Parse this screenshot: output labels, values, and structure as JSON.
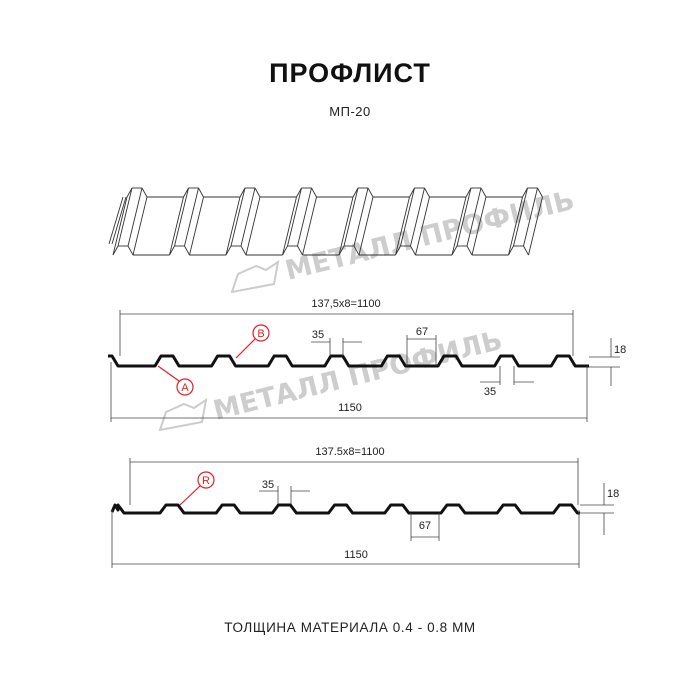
{
  "header": {
    "title": "ПРОФЛИСТ",
    "subtitle": "МП-20"
  },
  "watermark": {
    "text": "МЕТАЛЛ ПРОФИЛЬ",
    "color": "#bdbdbd"
  },
  "profile_1": {
    "pitch_label": "137,5x8=1100",
    "total_width_label": "1150",
    "crest_label": "35",
    "trough_label": "35",
    "rib_label": "67",
    "height_label": "18",
    "marker_a": "A",
    "marker_b": "B"
  },
  "profile_2": {
    "pitch_label": "137.5x8=1100",
    "total_width_label": "1150",
    "crest_label": "35",
    "rib_label": "67",
    "height_label": "18",
    "marker_r": "R"
  },
  "footer": {
    "thickness": "ТОЛЩИНА МАТЕРИАЛА 0.4 - 0.8 ММ"
  },
  "colors": {
    "marker": "#e31e24",
    "profile": "#111111"
  }
}
